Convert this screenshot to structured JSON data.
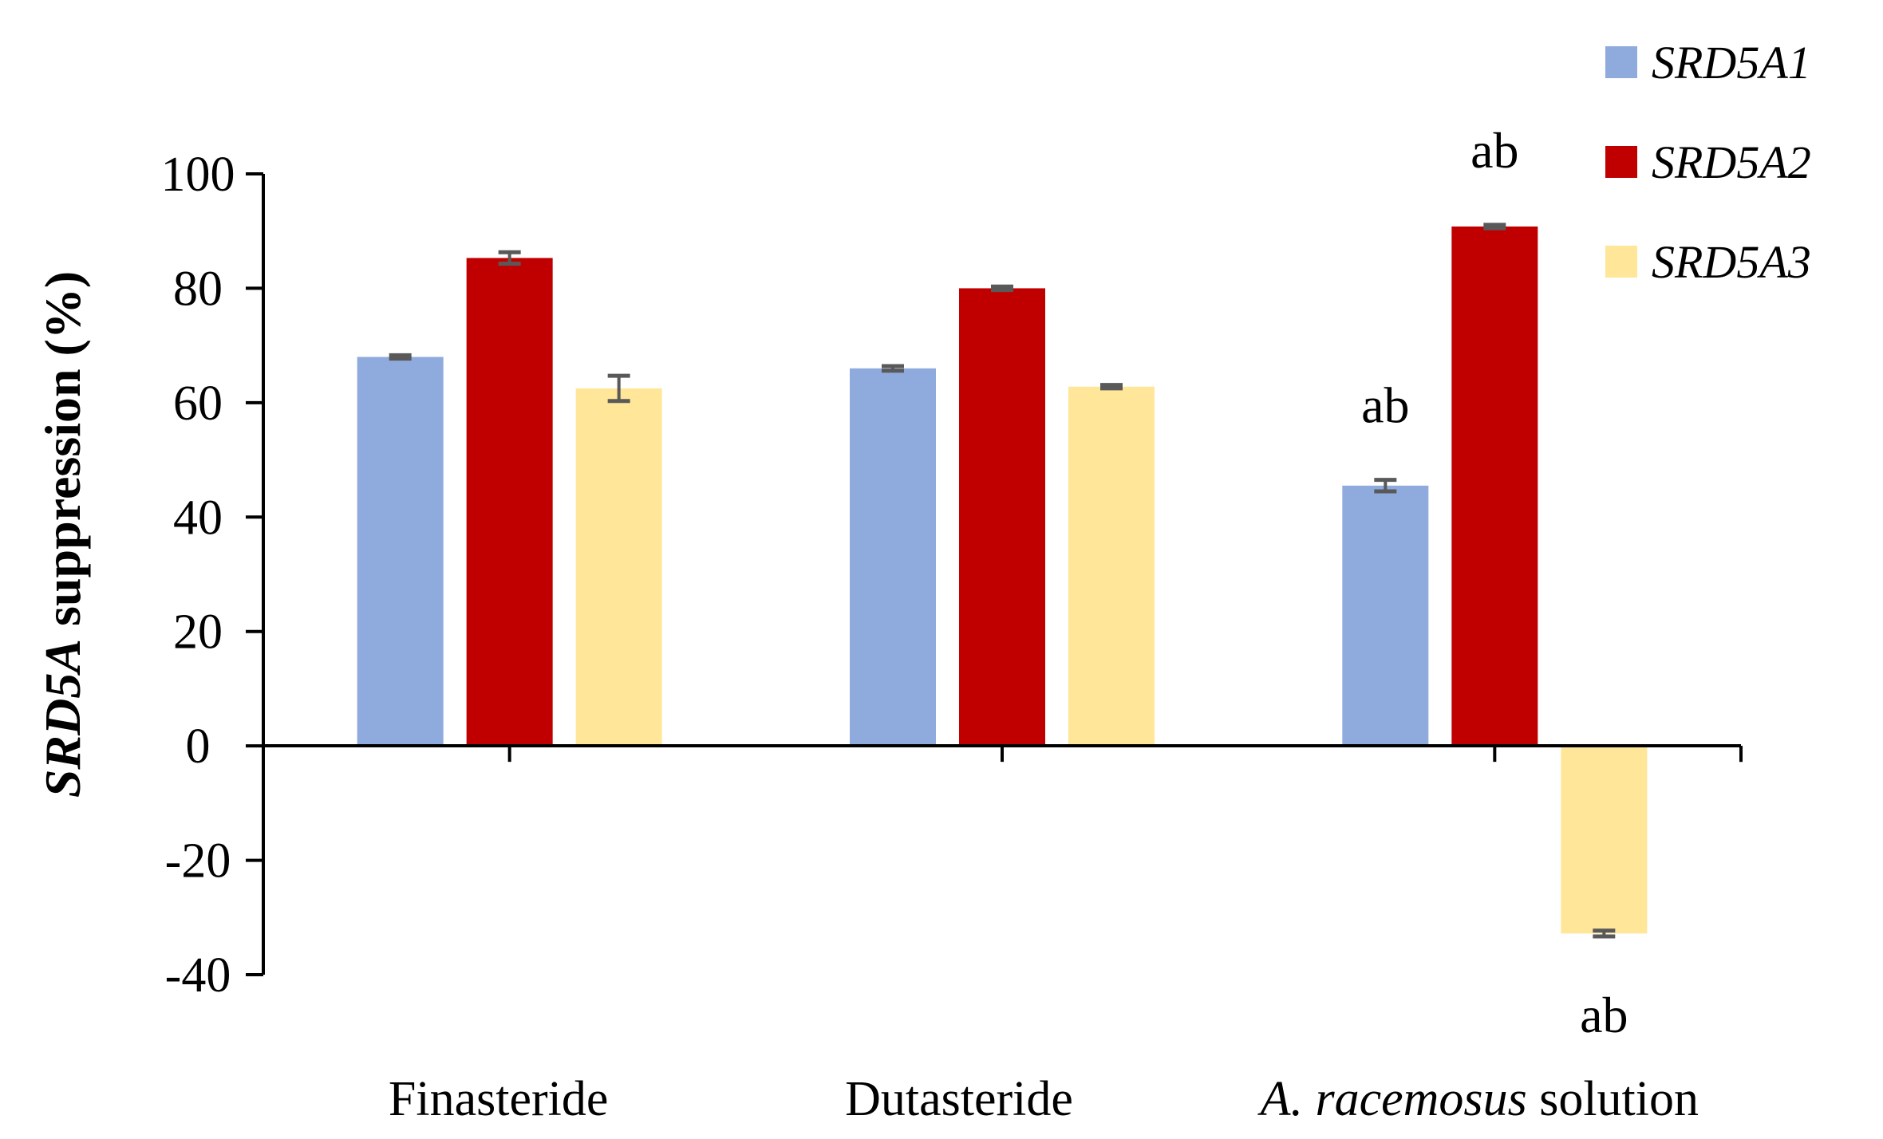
{
  "chart_data": {
    "type": "bar",
    "title": "",
    "xlabel": "",
    "ylabel_italic": "SRD5A",
    "ylabel_rest": " suppression (%)",
    "ylim": [
      -40,
      100
    ],
    "yticks": [
      "100",
      "80",
      "60",
      "40",
      "20",
      "0",
      "-20",
      "-40"
    ],
    "ytick_values": [
      100,
      80,
      60,
      40,
      20,
      0,
      -20,
      -40
    ],
    "categories": [
      {
        "italic": "",
        "text": "Finasteride"
      },
      {
        "italic": "",
        "text": "Dutasteride"
      },
      {
        "italic": "A. racemosus",
        "text": " solution"
      }
    ],
    "series": [
      {
        "name": "SRD5A1",
        "color": "#8faadc",
        "values": [
          68.0,
          66.0,
          45.5
        ],
        "errors": [
          0.3,
          0.4,
          1.0
        ]
      },
      {
        "name": "SRD5A2",
        "color": "#c00000",
        "values": [
          85.3,
          80.0,
          90.8
        ],
        "errors": [
          1.0,
          0.3,
          0.3
        ]
      },
      {
        "name": "SRD5A3",
        "color": "#ffe699",
        "values": [
          62.5,
          62.8,
          -32.8
        ],
        "errors": [
          2.2,
          0.3,
          0.5
        ]
      }
    ],
    "annotations": [
      {
        "text": "ab",
        "category": 2,
        "series": 0
      },
      {
        "text": "ab",
        "category": 2,
        "series": 1
      },
      {
        "text": "ab",
        "category": 2,
        "series": 2
      }
    ],
    "legend_position": "top-right",
    "grid": false
  }
}
